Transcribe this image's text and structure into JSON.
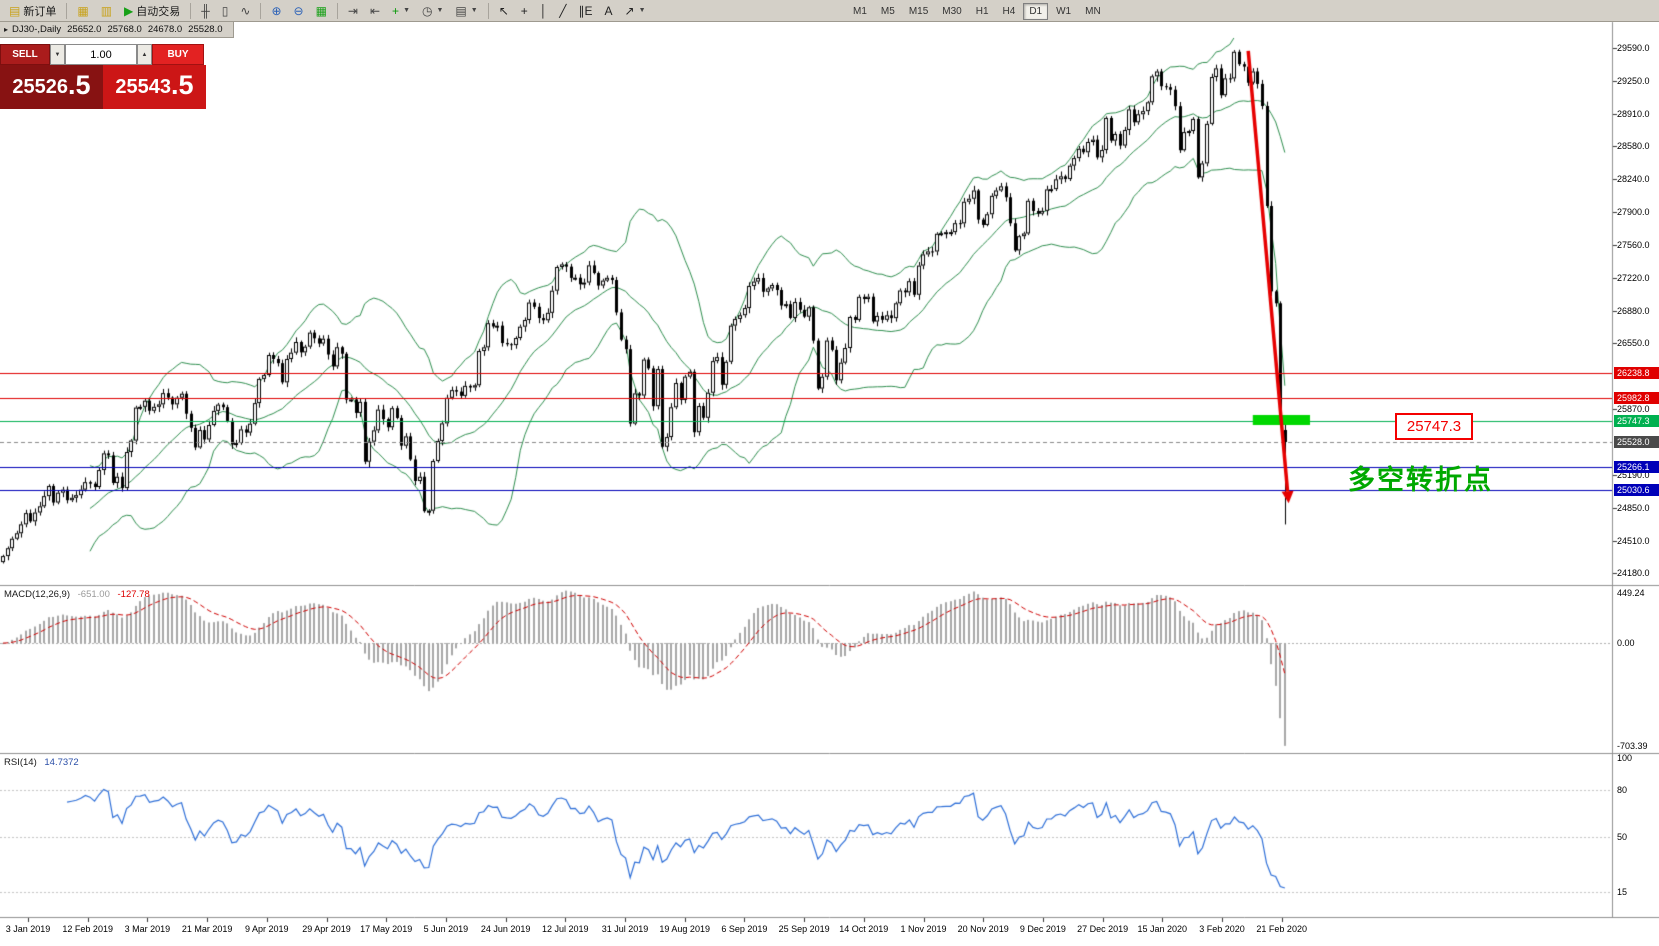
{
  "chart_header": {
    "menu_glyph": "▸",
    "symbol": "DJ30-,Daily",
    "open": "25652.0",
    "high": "25768.0",
    "low": "24678.0",
    "close": "25528.0"
  },
  "trade_panel": {
    "sell_label": "SELL",
    "buy_label": "BUY",
    "volume": "1.00",
    "spin_down": "▼",
    "spin_up": "▲",
    "bid_int": "25526",
    "bid_frac": ".5",
    "ask_int": "25543",
    "ask_frac": ".5"
  },
  "toolbar": {
    "groups": [
      {
        "items": [
          {
            "name": "new-order-button",
            "glyph": "▤",
            "glyph_color": "#c8a21a",
            "label": "新订单"
          }
        ]
      },
      {
        "items": [
          {
            "name": "market-watch-icon",
            "glyph": "▦",
            "glyph_color": "#c8a21a"
          },
          {
            "name": "data-window-icon",
            "glyph": "▥",
            "glyph_color": "#c8a21a"
          },
          {
            "name": "auto-trading-button",
            "glyph": "▶",
            "glyph_color": "#17a017",
            "label": "自动交易"
          }
        ]
      },
      {
        "items": [
          {
            "name": "ohlc-bars-icon",
            "glyph": "╫",
            "glyph_color": "#444444"
          },
          {
            "name": "candlestick-chart-icon",
            "glyph": "▯",
            "glyph_color": "#444444"
          },
          {
            "name": "line-chart-icon",
            "glyph": "∿",
            "glyph_color": "#444444"
          }
        ]
      },
      {
        "items": [
          {
            "name": "zoom-in-icon",
            "glyph": "⊕",
            "glyph_color": "#2c62b8"
          },
          {
            "name": "zoom-out-icon",
            "glyph": "⊖",
            "glyph_color": "#2c62b8"
          },
          {
            "name": "tile-windows-icon",
            "glyph": "▦",
            "glyph_color": "#17a017"
          }
        ]
      },
      {
        "items": [
          {
            "name": "auto-scroll-icon",
            "glyph": "⇥",
            "glyph_color": "#444444"
          },
          {
            "name": "chart-shift-icon",
            "glyph": "⇤",
            "glyph_color": "#444444"
          },
          {
            "name": "indicators-icon",
            "glyph": "+",
            "glyph_color": "#0a9a0a",
            "dropdown": true
          },
          {
            "name": "periods-icon",
            "glyph": "◷",
            "glyph_color": "#444444",
            "dropdown": true
          },
          {
            "name": "templates-icon",
            "glyph": "▤",
            "glyph_color": "#444444",
            "dropdown": true
          }
        ]
      },
      {
        "items": [
          {
            "name": "cursor-icon",
            "glyph": "↖",
            "glyph_color": "#222222"
          },
          {
            "name": "crosshair-icon",
            "glyph": "+",
            "glyph_color": "#222222"
          },
          {
            "name": "vertical-line-icon",
            "glyph": "│",
            "glyph_color": "#222222"
          },
          {
            "name": "trendline-icon",
            "glyph": "╱",
            "glyph_color": "#222222"
          },
          {
            "name": "equidistant-channel-icon",
            "glyph": "∥",
            "glyph_color": "#222222",
            "sub": "E"
          },
          {
            "name": "text-icon",
            "glyph": "A",
            "glyph_color": "#222222"
          },
          {
            "name": "arrows-icon",
            "glyph": "↗",
            "glyph_color": "#222222",
            "dropdown": true
          }
        ]
      }
    ],
    "timeframes": {
      "labels": [
        "M1",
        "M5",
        "M15",
        "M30",
        "H1",
        "H4",
        "D1",
        "W1",
        "MN"
      ],
      "active": "D1"
    }
  },
  "indicators": {
    "macd": {
      "label": "MACD(12,26,9)",
      "value_main": "-651.00",
      "value_signal": "-127.78",
      "axis_max": "449.24",
      "axis_zero": "0.00",
      "axis_min": "-703.39"
    },
    "rsi": {
      "label": "RSI(14)",
      "value": "14.7372",
      "axis_labels": [
        "100",
        "80",
        "50",
        "15"
      ]
    }
  },
  "annotations": {
    "price_box": "25747.3",
    "note": "多空转折点"
  },
  "chart_data": {
    "type": "candlestick",
    "symbol": "DJ30-",
    "timeframe": "Daily",
    "last_candle_ohlc": [
      25652.0,
      25768.0,
      24678.0,
      25528.0
    ],
    "first_open": 24290,
    "closes": [
      24352,
      24433,
      24531,
      24587,
      24679,
      24795,
      24710,
      24801,
      24865,
      24970,
      25075,
      24904,
      25006,
      25037,
      24928,
      24953,
      24980,
      25037,
      25114,
      25099,
      25064,
      25239,
      25411,
      25390,
      25106,
      25170,
      25053,
      25425,
      25543,
      25883,
      25891,
      25954,
      25850,
      25891,
      25916,
      26032,
      25986,
      25916,
      25985,
      26026,
      25820,
      25674,
      25472,
      25651,
      25554,
      25703,
      25849,
      25914,
      25887,
      25746,
      25502,
      25517,
      25658,
      25625,
      25717,
      25929,
      26179,
      26218,
      26425,
      26384,
      26341,
      26143,
      26384,
      26449,
      26559,
      26452,
      26511,
      26656,
      26597,
      26543,
      26593,
      26430,
      26307,
      26505,
      26438,
      25965,
      25967,
      25828,
      25942,
      25325,
      25532,
      25648,
      25862,
      25764,
      25680,
      25877,
      25776,
      25490,
      25586,
      25348,
      25126,
      25170,
      24815,
      24820,
      25332,
      25539,
      25720,
      25984,
      26063,
      26048,
      26004,
      26107,
      26090,
      26113,
      26466,
      26504,
      26753,
      26719,
      26728,
      26548,
      26536,
      26527,
      26600,
      26717,
      26786,
      26966,
      26922,
      26806,
      26783,
      26860,
      27088,
      27332,
      27359,
      27336,
      27220,
      27222,
      27154,
      27172,
      27349,
      27270,
      27141,
      27192,
      27221,
      27198,
      26864,
      26583,
      26485,
      25718,
      26029,
      26007,
      26378,
      26287,
      25897,
      26280,
      25479,
      25579,
      25886,
      26136,
      25962,
      26202,
      26252,
      25629,
      25899,
      25778,
      26036,
      26362,
      26403,
      26118,
      26355,
      26728,
      26797,
      26835,
      26909,
      27137,
      27182,
      27219,
      27077,
      27111,
      27147,
      27095,
      26935,
      26949,
      26807,
      26971,
      26891,
      26820,
      26917,
      26573,
      26079,
      26201,
      26574,
      26478,
      26164,
      26346,
      26497,
      26817,
      26787,
      27025,
      27002,
      27026,
      26770,
      26828,
      26788,
      26834,
      26805,
      26958,
      27090,
      27071,
      27186,
      27046,
      27347,
      27462,
      27493,
      27492,
      27675,
      27681,
      27691,
      27692,
      27784,
      27782,
      28005,
      28036,
      28121,
      27821,
      27766,
      27876,
      28066,
      28121,
      28164,
      28051,
      27783,
      27503,
      27650,
      27678,
      28015,
      27910,
      27882,
      27911,
      28132,
      28135,
      28236,
      28267,
      28239,
      28377,
      28455,
      28551,
      28515,
      28621,
      28645,
      28462,
      28538,
      28869,
      28635,
      28704,
      28584,
      28745,
      28957,
      28824,
      28907,
      28939,
      29030,
      29298,
      29348,
      29196,
      29186,
      29160,
      28990,
      28536,
      28723,
      28734,
      28859,
      28256,
      28400,
      28808,
      29291,
      29380,
      29103,
      29277,
      29276,
      29551,
      29423,
      29398,
      29232,
      29348,
      29220,
      28992,
      27961,
      27081,
      26958,
      25767,
      25528
    ],
    "indicator_params": {
      "bollinger_period": 20,
      "bollinger_deviation": 2,
      "macd": [
        12,
        26,
        9
      ],
      "rsi_period": 14
    },
    "price_axis_ticks": [
      "29590.0",
      "29250.0",
      "28910.0",
      "28580.0",
      "28240.0",
      "27900.0",
      "27560.0",
      "27220.0",
      "26880.0",
      "26550.0",
      "25870.0",
      "25190.0",
      "24850.0",
      "24510.0",
      "24180.0"
    ],
    "level_lines": [
      {
        "price": 26238.8,
        "label": "26238.8",
        "color": "#e00000",
        "style": "solid",
        "name": "resistance-1"
      },
      {
        "price": 25982.8,
        "label": "25982.8",
        "color": "#e00000",
        "style": "solid",
        "name": "resistance-2"
      },
      {
        "price": 25747.3,
        "label": "25747.3",
        "color": "#00b050",
        "style": "solid",
        "name": "key-level"
      },
      {
        "price": 25528.0,
        "label": "25528.0",
        "color": "#888888",
        "style": "dashed",
        "badge": "#4a4a4a",
        "name": "current-price"
      },
      {
        "price": 25266.1,
        "label": "25266.1",
        "color": "#0000b8",
        "style": "solid",
        "name": "support-1"
      },
      {
        "price": 25030.6,
        "label": "25030.6",
        "color": "#0000b8",
        "style": "solid",
        "name": "support-2"
      }
    ],
    "date_labels": [
      "3 Jan 2019",
      "12 Feb 2019",
      "3 Mar 2019",
      "21 Mar 2019",
      "9 Apr 2019",
      "29 Apr 2019",
      "17 May 2019",
      "5 Jun 2019",
      "24 Jun 2019",
      "12 Jul 2019",
      "31 Jul 2019",
      "19 Aug 2019",
      "6 Sep 2019",
      "25 Sep 2019",
      "14 Oct 2019",
      "1 Nov 2019",
      "20 Nov 2019",
      "9 Dec 2019",
      "27 Dec 2019",
      "15 Jan 2020",
      "3 Feb 2020",
      "21 Feb 2020"
    ],
    "trend_arrow": {
      "from_index": 272,
      "from_price": 29560,
      "to_index": 280.6,
      "to_price": 25020,
      "color": "#e60000"
    },
    "highlight_bar": {
      "from_index": 273,
      "to_index": 285.5,
      "price": 25755,
      "color": "#00d800"
    },
    "colors": {
      "bollinger": "#2f8f4f",
      "macd_histogram": "#a8a8a8",
      "macd_signal": "#d00000",
      "rsi_line": "#2e6fd8",
      "candle": "#000000"
    }
  }
}
